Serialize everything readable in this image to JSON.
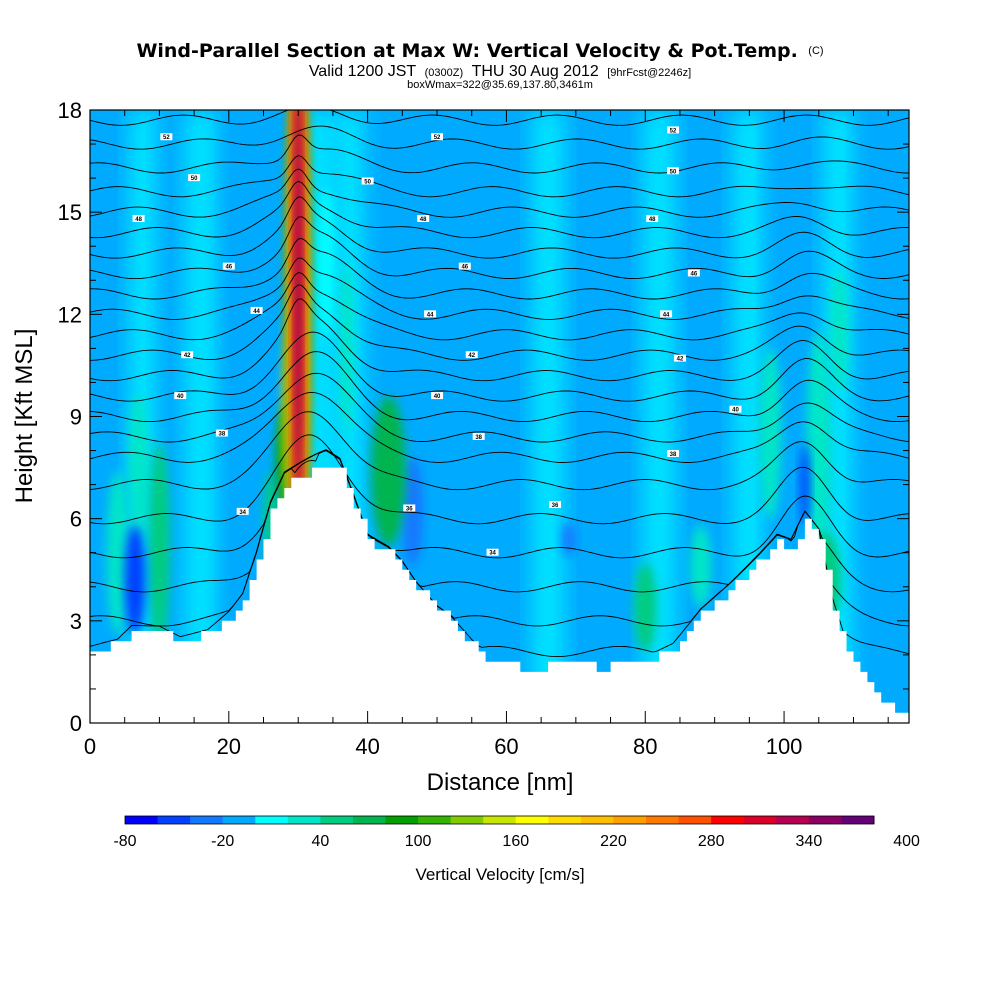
{
  "chart_data": {
    "type": "heatmap",
    "title": "Wind-Parallel Section at Max W: Vertical Velocity & Pot.Temp.",
    "title_mark": "(C)",
    "subtitle": {
      "prefix": "Valid 1200 JST",
      "utc": "(0300Z)",
      "date": "THU 30 Aug 2012",
      "forecast": "[9hrFcst@2246z]"
    },
    "info": "boxWmax=322@35.69,137.80,3461m",
    "xlabel": "Distance [nm]",
    "ylabel": "Height [Kft MSL]",
    "xlim": [
      0,
      118
    ],
    "ylim": [
      0,
      18
    ],
    "x_ticks": [
      0,
      20,
      40,
      60,
      80,
      100
    ],
    "y_ticks": [
      0,
      3,
      6,
      9,
      12,
      15,
      18
    ],
    "colorbar": {
      "label": "Vertical Velocity [cm/s]",
      "min": -80,
      "step": 20,
      "tick_labels": [
        "-80",
        "-20",
        "40",
        "100",
        "160",
        "220",
        "280",
        "340",
        "400"
      ],
      "colors": [
        "#0000ff",
        "#0040ff",
        "#1478ff",
        "#00aaff",
        "#00ffff",
        "#00e6c8",
        "#00cc80",
        "#00b450",
        "#00a000",
        "#33b400",
        "#80cc00",
        "#c8e600",
        "#ffff00",
        "#ffdc00",
        "#ffbe00",
        "#ffa000",
        "#ff7800",
        "#ff5000",
        "#ff0000",
        "#dc0028",
        "#b40050",
        "#8c0064",
        "#640078"
      ]
    },
    "terrain": [
      [
        0,
        2.1
      ],
      [
        4,
        2.3
      ],
      [
        6,
        2.7
      ],
      [
        10,
        2.7
      ],
      [
        13,
        2.4
      ],
      [
        17,
        2.6
      ],
      [
        20,
        3.1
      ],
      [
        22,
        3.6
      ],
      [
        24,
        4.8
      ],
      [
        26,
        6.2
      ],
      [
        28,
        7.0
      ],
      [
        31,
        7.3
      ],
      [
        34,
        7.6
      ],
      [
        36,
        7.4
      ],
      [
        38,
        6.4
      ],
      [
        40,
        5.3
      ],
      [
        43,
        5.0
      ],
      [
        45,
        4.6
      ],
      [
        47,
        4.0
      ],
      [
        50,
        3.3
      ],
      [
        52,
        3.0
      ],
      [
        55,
        2.3
      ],
      [
        58,
        1.7
      ],
      [
        64,
        1.6
      ],
      [
        70,
        1.8
      ],
      [
        73,
        1.6
      ],
      [
        80,
        1.8
      ],
      [
        84,
        2.2
      ],
      [
        88,
        3.2
      ],
      [
        92,
        3.9
      ],
      [
        96,
        4.7
      ],
      [
        99,
        5.3
      ],
      [
        101,
        5.1
      ],
      [
        103,
        5.9
      ],
      [
        105,
        5.4
      ],
      [
        107,
        3.4
      ],
      [
        109,
        2.2
      ],
      [
        111,
        1.6
      ],
      [
        113,
        0.9
      ],
      [
        115,
        0.5
      ],
      [
        118,
        0.3
      ]
    ],
    "isentropes": {
      "base_levels": [
        2.1,
        3.0,
        4.0,
        5.0,
        6.0,
        7.0,
        7.8,
        8.4,
        9.0,
        9.6,
        10.2,
        10.8,
        11.4,
        12.0,
        12.6,
        13.2,
        13.8,
        14.4,
        15.0,
        15.6,
        16.3,
        17.0,
        17.7
      ],
      "labels": [
        {
          "x": 22,
          "y": 6.2,
          "text": "34"
        },
        {
          "x": 58,
          "y": 5.0,
          "text": "34"
        },
        {
          "x": 46,
          "y": 6.3,
          "text": "36"
        },
        {
          "x": 67,
          "y": 6.4,
          "text": "36"
        },
        {
          "x": 19,
          "y": 8.5,
          "text": "38"
        },
        {
          "x": 56,
          "y": 8.4,
          "text": "38"
        },
        {
          "x": 84,
          "y": 7.9,
          "text": "38"
        },
        {
          "x": 13,
          "y": 9.6,
          "text": "40"
        },
        {
          "x": 50,
          "y": 9.6,
          "text": "40"
        },
        {
          "x": 93,
          "y": 9.2,
          "text": "40"
        },
        {
          "x": 14,
          "y": 10.8,
          "text": "42"
        },
        {
          "x": 55,
          "y": 10.8,
          "text": "42"
        },
        {
          "x": 85,
          "y": 10.7,
          "text": "42"
        },
        {
          "x": 24,
          "y": 12.1,
          "text": "44"
        },
        {
          "x": 49,
          "y": 12.0,
          "text": "44"
        },
        {
          "x": 83,
          "y": 12.0,
          "text": "44"
        },
        {
          "x": 20,
          "y": 13.4,
          "text": "46"
        },
        {
          "x": 54,
          "y": 13.4,
          "text": "46"
        },
        {
          "x": 87,
          "y": 13.2,
          "text": "46"
        },
        {
          "x": 7,
          "y": 14.8,
          "text": "48"
        },
        {
          "x": 48,
          "y": 14.8,
          "text": "48"
        },
        {
          "x": 81,
          "y": 14.8,
          "text": "48"
        },
        {
          "x": 15,
          "y": 16.0,
          "text": "50"
        },
        {
          "x": 40,
          "y": 15.9,
          "text": "50"
        },
        {
          "x": 84,
          "y": 16.2,
          "text": "50"
        },
        {
          "x": 11,
          "y": 17.2,
          "text": "52"
        },
        {
          "x": 50,
          "y": 17.2,
          "text": "52"
        },
        {
          "x": 84,
          "y": 17.4,
          "text": "52"
        }
      ]
    },
    "velocity_features": [
      {
        "x": 30,
        "y": 12.5,
        "rx": 1.3,
        "ry": 7.5,
        "value": 370
      },
      {
        "x": 30,
        "y": 15,
        "rx": 0.8,
        "ry": 3.5,
        "value": 340
      },
      {
        "x": 29.5,
        "y": 9,
        "rx": 1.6,
        "ry": 3.2,
        "value": 180
      },
      {
        "x": 28.3,
        "y": 7.8,
        "rx": 1.5,
        "ry": 1.6,
        "value": 90
      },
      {
        "x": 43,
        "y": 7.4,
        "rx": 2.5,
        "ry": 2.2,
        "value": 60
      },
      {
        "x": 7,
        "y": 7.5,
        "rx": 1.4,
        "ry": 2.2,
        "value": 30
      },
      {
        "x": 10,
        "y": 5.2,
        "rx": 1.5,
        "ry": 3.0,
        "value": 40
      },
      {
        "x": 4,
        "y": 5.0,
        "rx": 1.6,
        "ry": 2.4,
        "value": 30
      },
      {
        "x": 6.5,
        "y": 4.2,
        "rx": 1.5,
        "ry": 1.6,
        "value": -60
      },
      {
        "x": 46.5,
        "y": 6.2,
        "rx": 1.5,
        "ry": 1.6,
        "value": -40
      },
      {
        "x": 69,
        "y": 5.4,
        "rx": 1.0,
        "ry": 0.5,
        "value": -30
      },
      {
        "x": 80,
        "y": 3.4,
        "rx": 1.6,
        "ry": 1.3,
        "value": 40
      },
      {
        "x": 88,
        "y": 4.6,
        "rx": 1.5,
        "ry": 1.2,
        "value": 30
      },
      {
        "x": 106,
        "y": 4.2,
        "rx": 2.2,
        "ry": 1.4,
        "value": 40
      },
      {
        "x": 105,
        "y": 8.0,
        "rx": 1.8,
        "ry": 3.5,
        "value": 30
      },
      {
        "x": 108,
        "y": 11.5,
        "rx": 1.3,
        "ry": 1.8,
        "value": 20
      },
      {
        "x": 103,
        "y": 7.0,
        "rx": 0.7,
        "ry": 1.2,
        "value": -50
      },
      {
        "x": 98,
        "y": 8.5,
        "rx": 1.6,
        "ry": 2.5,
        "value": 20
      },
      {
        "x": 34,
        "y": 13.5,
        "rx": 1.2,
        "ry": 2.2,
        "value": 10
      },
      {
        "x": 37,
        "y": 11,
        "rx": 1.0,
        "ry": 2.5,
        "value": 20
      },
      {
        "x": 26,
        "y": 6.0,
        "rx": 1.0,
        "ry": 1.4,
        "value": 40
      }
    ]
  }
}
